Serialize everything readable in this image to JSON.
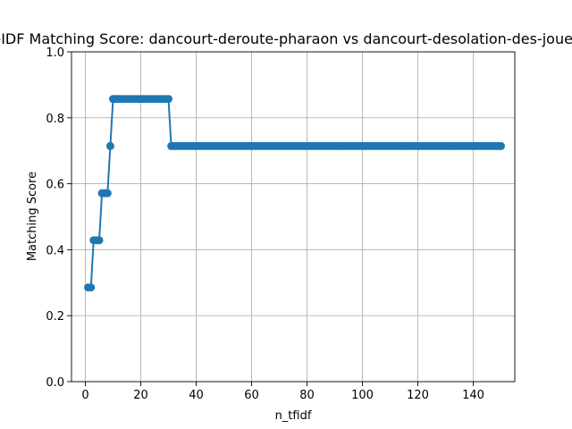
{
  "chart_data": {
    "type": "line",
    "title": "TF-IDF Matching Score: dancourt-deroute-pharaon vs dancourt-desolation-des-joueuses",
    "xlabel": "n_tfidf",
    "ylabel": "Matching Score",
    "xlim": [
      -5,
      155
    ],
    "ylim": [
      0,
      1.0
    ],
    "x_ticks": [
      "0",
      "20",
      "40",
      "60",
      "80",
      "100",
      "120",
      "140"
    ],
    "y_ticks": [
      "0.0",
      "0.2",
      "0.4",
      "0.6",
      "0.8",
      "1.0"
    ],
    "grid": true,
    "marker": "circle",
    "color": "#1f77b4",
    "series": [
      {
        "x_start": 1,
        "x_end": 150,
        "segments": [
          {
            "from": 1,
            "to": 2,
            "value": 0.2857
          },
          {
            "from": 3,
            "to": 5,
            "value": 0.4286
          },
          {
            "from": 6,
            "to": 8,
            "value": 0.5714
          },
          {
            "from": 9,
            "to": 9,
            "value": 0.7143
          },
          {
            "from": 10,
            "to": 30,
            "value": 0.8571
          },
          {
            "from": 31,
            "to": 150,
            "value": 0.7143
          }
        ]
      }
    ]
  }
}
